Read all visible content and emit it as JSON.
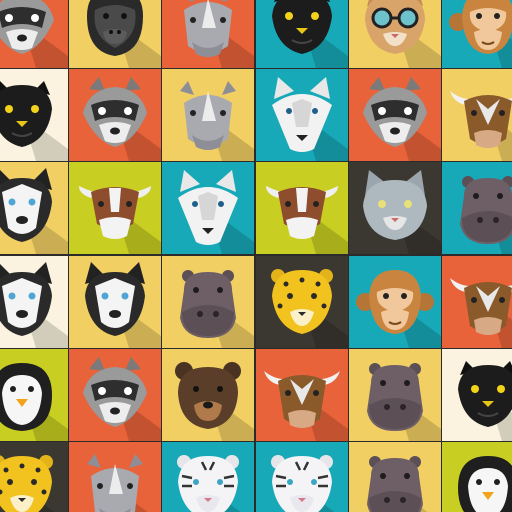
{
  "board": {
    "rows": [
      [
        {
          "animal": "raccoon",
          "bg": "#e8623a"
        },
        {
          "animal": "gorilla",
          "bg": "#f2cf63"
        },
        {
          "animal": "rhino",
          "bg": "#e8623a"
        },
        {
          "animal": "panther",
          "bg": "#17a9b8"
        },
        {
          "animal": "cat-glasses",
          "bg": "#f2cf63"
        },
        {
          "animal": "monkey",
          "bg": "#17a9b8"
        }
      ],
      [
        {
          "animal": "panther",
          "bg": "#fbf3df"
        },
        {
          "animal": "raccoon",
          "bg": "#e8623a"
        },
        {
          "animal": "rhino",
          "bg": "#f2cf63"
        },
        {
          "animal": "wolf",
          "bg": "#17a9b8"
        },
        {
          "animal": "raccoon",
          "bg": "#e8623a"
        },
        {
          "animal": "bull",
          "bg": "#f2cf63"
        }
      ],
      [
        {
          "animal": "husky",
          "bg": "#f2cf63"
        },
        {
          "animal": "cow",
          "bg": "#c9cf22"
        },
        {
          "animal": "wolf",
          "bg": "#17a9b8"
        },
        {
          "animal": "cow",
          "bg": "#c9cf22"
        },
        {
          "animal": "cat",
          "bg": "#3b3731"
        },
        {
          "animal": "hippo",
          "bg": "#17a9b8"
        }
      ],
      [
        {
          "animal": "husky",
          "bg": "#fbf3df"
        },
        {
          "animal": "husky",
          "bg": "#f2cf63"
        },
        {
          "animal": "hippo",
          "bg": "#f2cf63"
        },
        {
          "animal": "leopard",
          "bg": "#3b3731"
        },
        {
          "animal": "monkey",
          "bg": "#17a9b8"
        },
        {
          "animal": "bull",
          "bg": "#e8623a"
        }
      ],
      [
        {
          "animal": "penguin",
          "bg": "#c9cf22"
        },
        {
          "animal": "raccoon",
          "bg": "#e8623a"
        },
        {
          "animal": "bear",
          "bg": "#f2cf63"
        },
        {
          "animal": "bull",
          "bg": "#e8623a"
        },
        {
          "animal": "hippo",
          "bg": "#f2cf63"
        },
        {
          "animal": "panther",
          "bg": "#fbf3df"
        }
      ],
      [
        {
          "animal": "leopard",
          "bg": "#3b3731"
        },
        {
          "animal": "rhino",
          "bg": "#e8623a"
        },
        {
          "animal": "white-tiger",
          "bg": "#17a9b8"
        },
        {
          "animal": "white-tiger",
          "bg": "#17a9b8"
        },
        {
          "animal": "hippo",
          "bg": "#f2cf63"
        },
        {
          "animal": "penguin",
          "bg": "#c9cf22"
        }
      ]
    ]
  }
}
